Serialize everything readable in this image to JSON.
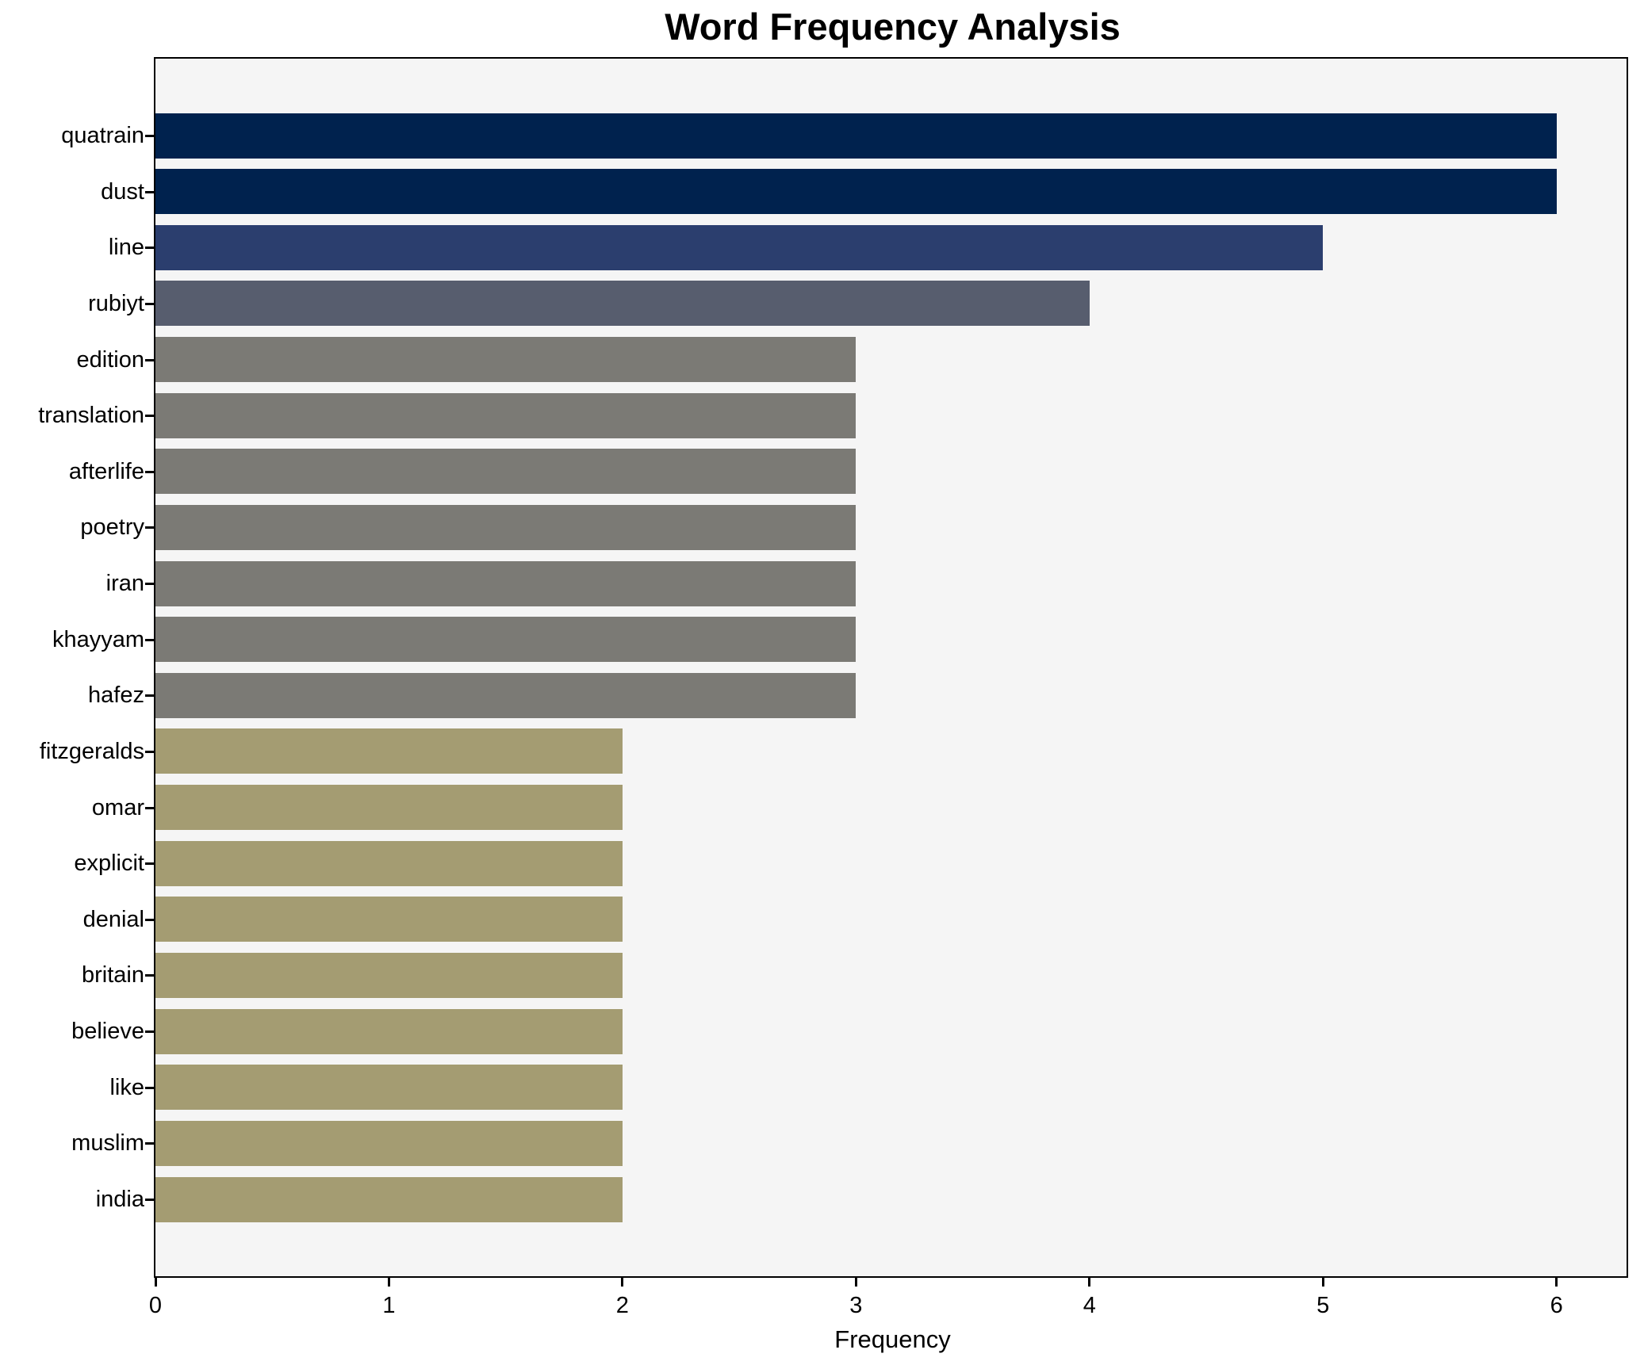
{
  "figure": {
    "background": "#ffffff",
    "plot_background": "#f5f5f5",
    "spine_color": "#000000",
    "text_color": "#000000"
  },
  "chart_data": {
    "type": "bar",
    "orientation": "horizontal",
    "title": "Word Frequency Analysis",
    "xlabel": "Frequency",
    "ylabel": "",
    "grid": false,
    "legend_position": "none",
    "xlim": [
      0,
      6.3
    ],
    "xticks": [
      "0",
      "1",
      "2",
      "3",
      "4",
      "5",
      "6"
    ],
    "categories": [
      "quatrain",
      "dust",
      "line",
      "rubiyt",
      "edition",
      "translation",
      "afterlife",
      "poetry",
      "iran",
      "khayyam",
      "hafez",
      "fitzgeralds",
      "omar",
      "explicit",
      "denial",
      "britain",
      "believe",
      "like",
      "muslim",
      "india"
    ],
    "values": [
      6,
      6,
      5,
      4,
      3,
      3,
      3,
      3,
      3,
      3,
      3,
      2,
      2,
      2,
      2,
      2,
      2,
      2,
      2,
      2
    ],
    "bar_colors": [
      "#00224e",
      "#00224e",
      "#2b3e6e",
      "#575d6e",
      "#7b7a75",
      "#7b7a75",
      "#7b7a75",
      "#7b7a75",
      "#7b7a75",
      "#7b7a75",
      "#7b7a75",
      "#a49c72",
      "#a49c72",
      "#a49c72",
      "#a49c72",
      "#a49c72",
      "#a49c72",
      "#a49c72",
      "#a49c72",
      "#a49c72"
    ]
  }
}
